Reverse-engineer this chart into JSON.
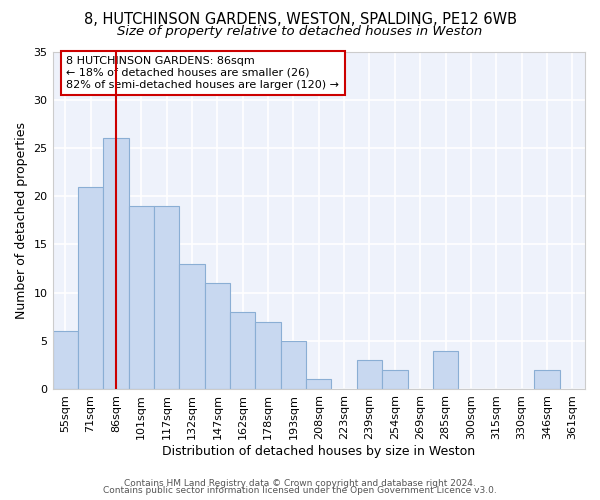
{
  "title1": "8, HUTCHINSON GARDENS, WESTON, SPALDING, PE12 6WB",
  "title2": "Size of property relative to detached houses in Weston",
  "xlabel": "Distribution of detached houses by size in Weston",
  "ylabel": "Number of detached properties",
  "categories": [
    "55sqm",
    "71sqm",
    "86sqm",
    "101sqm",
    "117sqm",
    "132sqm",
    "147sqm",
    "162sqm",
    "178sqm",
    "193sqm",
    "208sqm",
    "223sqm",
    "239sqm",
    "254sqm",
    "269sqm",
    "285sqm",
    "300sqm",
    "315sqm",
    "330sqm",
    "346sqm",
    "361sqm"
  ],
  "values": [
    6,
    21,
    26,
    19,
    19,
    13,
    11,
    8,
    7,
    5,
    1,
    0,
    3,
    2,
    0,
    4,
    0,
    0,
    0,
    2,
    0
  ],
  "bar_color": "#c8d8f0",
  "bar_edge_color": "#8aaed4",
  "highlight_index": 2,
  "highlight_color": "#cc0000",
  "annotation_text": "8 HUTCHINSON GARDENS: 86sqm\n← 18% of detached houses are smaller (26)\n82% of semi-detached houses are larger (120) →",
  "annotation_box_color": "white",
  "annotation_box_edge_color": "#cc0000",
  "ylim": [
    0,
    35
  ],
  "yticks": [
    0,
    5,
    10,
    15,
    20,
    25,
    30,
    35
  ],
  "footer1": "Contains HM Land Registry data © Crown copyright and database right 2024.",
  "footer2": "Contains public sector information licensed under the Open Government Licence v3.0.",
  "bg_color": "#eef2fb",
  "grid_color": "#ffffff",
  "title_fontsize": 10.5,
  "subtitle_fontsize": 9.5,
  "tick_fontsize": 8,
  "ylabel_fontsize": 9,
  "xlabel_fontsize": 9,
  "footer_fontsize": 6.5
}
